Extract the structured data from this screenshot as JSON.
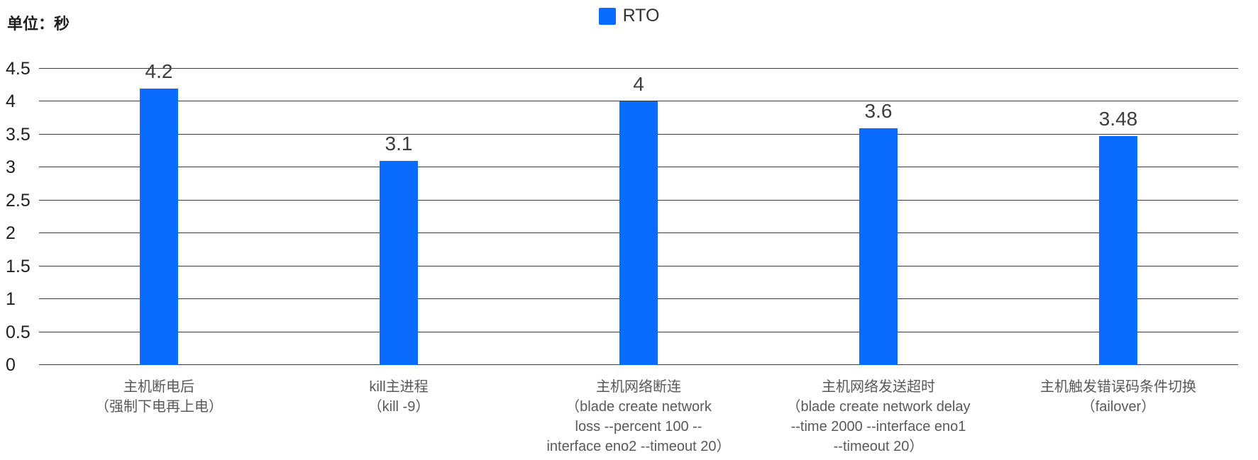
{
  "unit_label": "单位：秒",
  "legend": {
    "label": "RTO",
    "color": "#0a6cff"
  },
  "chart_data": {
    "type": "bar",
    "title": "",
    "unit": "秒",
    "series_name": "RTO",
    "bar_color": "#0a6cff",
    "categories": [
      [
        "主机断电后",
        "（强制下电再上电）"
      ],
      [
        "kill主进程",
        "（kill -9）"
      ],
      [
        "主机网络断连",
        "（blade create network",
        "loss --percent 100 --",
        "interface eno2 --timeout 20）"
      ],
      [
        "主机网络发送超时",
        "（blade create network delay",
        "--time 2000 --interface eno1",
        "--timeout 20）"
      ],
      [
        "主机触发错误码条件切换",
        "（failover）"
      ]
    ],
    "values": [
      4.2,
      3.1,
      4,
      3.6,
      3.48
    ],
    "value_labels": [
      "4.2",
      "3.1",
      "4",
      "3.6",
      "3.48"
    ],
    "ylim": [
      0,
      4.5
    ],
    "ytick_step": 0.5,
    "ytick_labels": [
      "0",
      "0.5",
      "1",
      "1.5",
      "2",
      "2.5",
      "3",
      "3.5",
      "4",
      "4.5"
    ],
    "grid": true,
    "legend_position": "top-center"
  }
}
